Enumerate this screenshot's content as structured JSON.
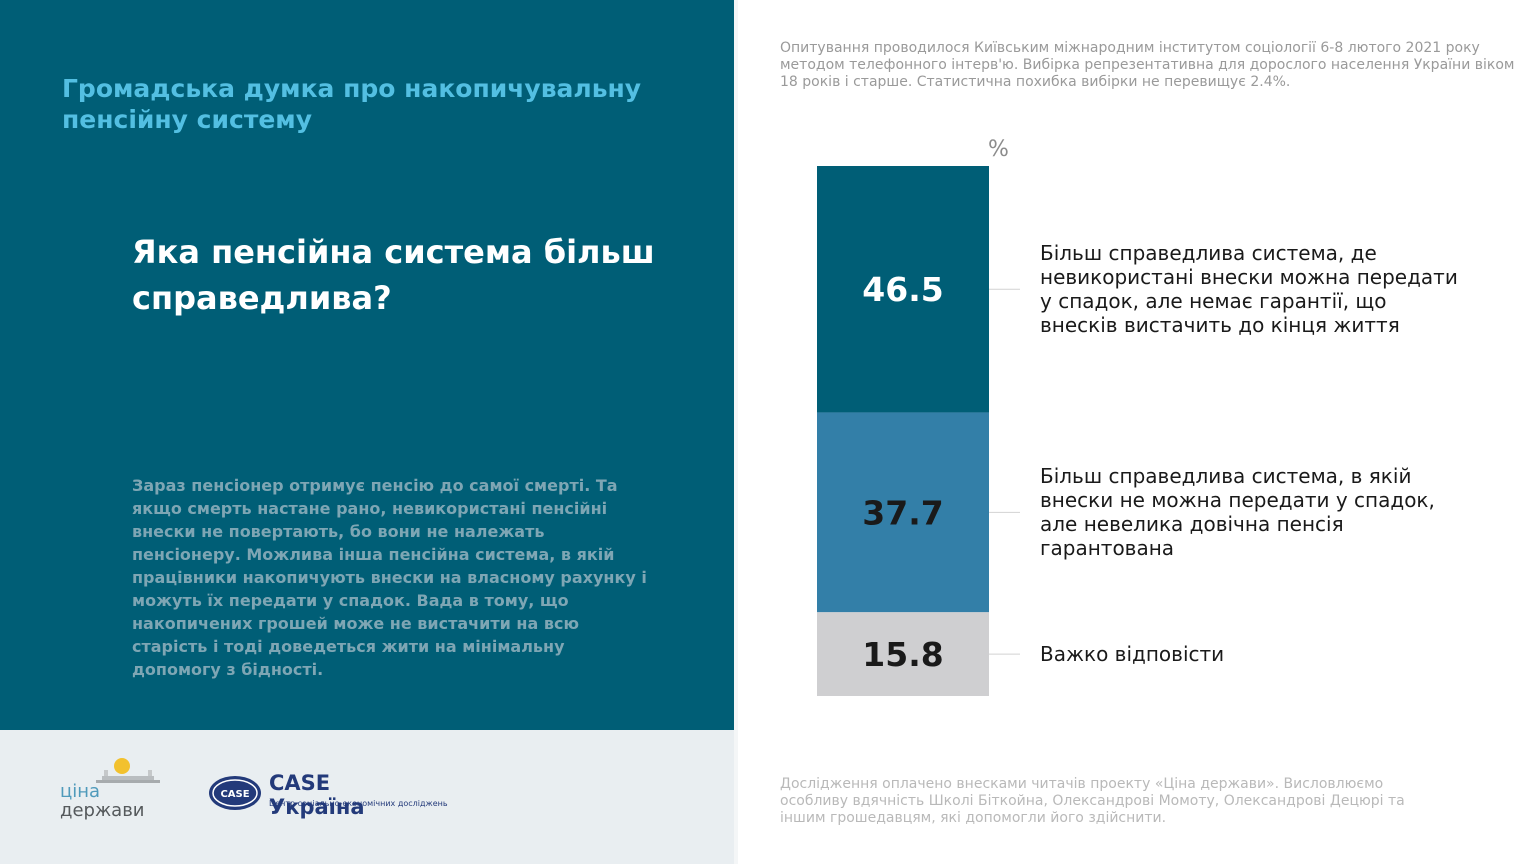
{
  "header": {
    "subtitle": "Громадська думка про накопичувальну пенсійну систему",
    "question": "Яка пенсійна система більш справедлива?",
    "explanation": "Зараз пенсіонер отримує пенсію до самої смерті. Та якщо смерть настане рано, невикористані пенсійні внески не повертають, бо вони не належать пенсіонеру. Можлива інша пенсійна система, в якій працівники накопичують внески на власному рахунку і можуть їх передати у спадок. Вада в тому, що накопичених грошей може не вистачити на всю старість і тоді доведеться жити на мінімальну допомогу з бідності."
  },
  "notes": {
    "methodology": "Опитування проводилося Київським міжнародним інститутом соціології 6-8 лютого 2021 року методом телефонного інтерв'ю. Вибірка репрезентативна для дорослого населення України віком 18 років і старше. Статистична похибка вибірки не перевищує 2.4%.",
    "funding": "Дослідження оплачено внесками читачів проекту «Ціна держави». Висловлюємо особливу вдячність Школі Біткойна, Олександрові Момоту, Олександрові Децюрі та іншим грошедавцям, які допомогли його здійснити."
  },
  "chart_data": {
    "type": "bar",
    "stacked": true,
    "unit_label": "%",
    "categories": [
      "Більш справедлива система, де невикористані внески можна передати у спадок, але немає гарантії, що внесків вистачить до кінця життя",
      "Більш справедлива система, в якій внески не можна передати у спадок, але невелика довічна пенсія гарантована",
      "Важко відповісти"
    ],
    "values": [
      46.5,
      37.7,
      15.8
    ],
    "value_labels": [
      "46.5",
      "37.7",
      "15.8"
    ],
    "colors": [
      "#005e76",
      "#337fa8",
      "#cfcfd1"
    ],
    "label_colors": [
      "#ffffff",
      "#1a1a1a",
      "#1a1a1a"
    ],
    "ylim": [
      0,
      100
    ]
  },
  "logos": {
    "cina_line1": "ціна",
    "cina_line2": "держави",
    "case_emblem_text": "CASE",
    "case_title": "CASE Україна",
    "case_subtitle": "Центр соціально-економічних досліджень"
  }
}
